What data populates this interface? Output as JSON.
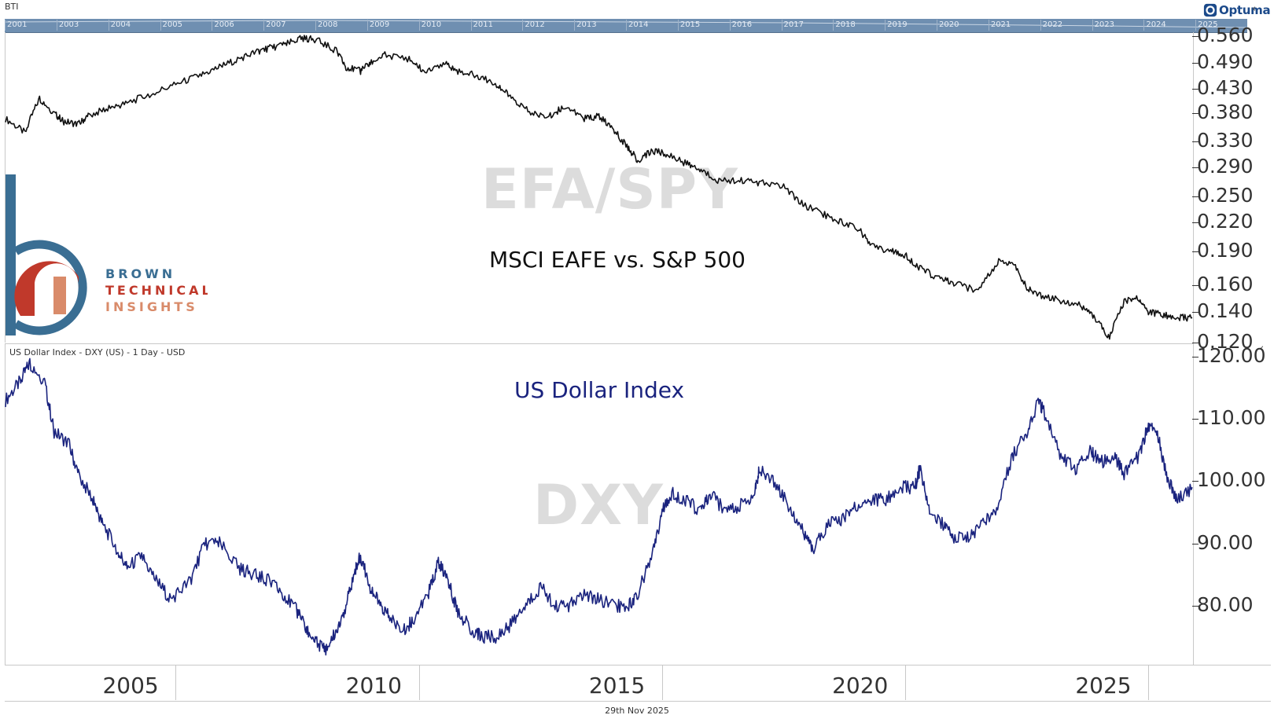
{
  "app": {
    "label": "BTI",
    "vendor": "Optuma",
    "date_stamp": "29th Nov 2025"
  },
  "navigator": {
    "years": [
      "2001",
      "2003",
      "2004",
      "2005",
      "2006",
      "2007",
      "2008",
      "2009",
      "2010",
      "2011",
      "2012",
      "2013",
      "2014",
      "2015",
      "2016",
      "2017",
      "2018",
      "2019",
      "2020",
      "2021",
      "2022",
      "2023",
      "2024",
      "2025"
    ]
  },
  "logo": {
    "line1": "BROWN",
    "line2": "TECHNICAL",
    "line3": "INSIGHTS",
    "colors": {
      "blue": "#3a6e93",
      "red": "#c0392b",
      "orange": "#d98b6a"
    }
  },
  "colors": {
    "ratio_line": "#111111",
    "dxy_line": "#1a237e",
    "watermark": "#dcdcdc",
    "navigator": "#6f8fb1"
  },
  "chart_data": [
    {
      "type": "line",
      "panel": "top",
      "watermark": "EFA/SPY",
      "annotation": "MSCI EAFE vs. S&P 500",
      "title": "",
      "y_ticks": [
        "0.560",
        "0.490",
        "0.430",
        "0.380",
        "0.330",
        "0.290",
        "0.250",
        "0.220",
        "0.190",
        "0.160",
        "0.140",
        "0.120"
      ],
      "ylim": [
        0.12,
        0.565
      ],
      "scale": "log",
      "xlim": [
        2001.5,
        2025.9
      ],
      "series": [
        {
          "x": [
            2001.5,
            2001.9,
            2002.2,
            2002.5,
            2002.7,
            2003.0,
            2003.2,
            2003.6,
            2004.0,
            2004.5,
            2005.0,
            2005.5,
            2005.9,
            2006.3,
            2006.7,
            2007.0,
            2007.3,
            2007.6,
            2007.9,
            2008.3,
            2008.5,
            2008.8,
            2009.0,
            2009.3,
            2009.8,
            2010.1,
            2010.5,
            2010.8,
            2011.2,
            2011.6,
            2011.9,
            2012.3,
            2012.7,
            2013.0,
            2013.4,
            2013.7,
            2014.0,
            2014.3,
            2014.5,
            2014.8,
            2015.1,
            2015.5,
            2015.8,
            2016.2,
            2016.6,
            2017.0,
            2017.5,
            2017.9,
            2018.2,
            2018.6,
            2019.0,
            2019.3,
            2019.7,
            2020.0,
            2020.3,
            2020.7,
            2021.0,
            2021.5,
            2021.9,
            2022.2,
            2022.5,
            2022.8,
            2023.2,
            2023.6,
            2023.9,
            2024.2,
            2024.5,
            2024.8,
            2025.0,
            2025.3,
            2025.6,
            2025.9
          ],
          "y": [
            0.37,
            0.345,
            0.41,
            0.38,
            0.365,
            0.36,
            0.375,
            0.39,
            0.4,
            0.42,
            0.44,
            0.46,
            0.48,
            0.5,
            0.52,
            0.53,
            0.54,
            0.555,
            0.55,
            0.52,
            0.48,
            0.47,
            0.49,
            0.51,
            0.5,
            0.47,
            0.49,
            0.47,
            0.46,
            0.44,
            0.41,
            0.38,
            0.375,
            0.395,
            0.37,
            0.375,
            0.35,
            0.32,
            0.3,
            0.315,
            0.31,
            0.295,
            0.285,
            0.27,
            0.272,
            0.268,
            0.264,
            0.24,
            0.232,
            0.222,
            0.215,
            0.195,
            0.19,
            0.186,
            0.175,
            0.165,
            0.162,
            0.155,
            0.18,
            0.18,
            0.158,
            0.152,
            0.148,
            0.145,
            0.136,
            0.123,
            0.148,
            0.15,
            0.14,
            0.138,
            0.136,
            0.136
          ]
        }
      ]
    },
    {
      "type": "line",
      "panel": "bottom",
      "title": "US Dollar Index - DXY (US) - 1 Day - USD",
      "watermark": "DXY",
      "annotation": "US Dollar Index",
      "y_ticks": [
        "120.00",
        "110.00",
        "100.00",
        "90.00",
        "80.00"
      ],
      "ylim": [
        71,
        121
      ],
      "xlim": [
        2001.5,
        2025.9
      ],
      "series": [
        {
          "x": [
            2001.5,
            2001.8,
            2002.0,
            2002.3,
            2002.5,
            2002.8,
            2003.0,
            2003.3,
            2003.5,
            2003.8,
            2004.0,
            2004.3,
            2004.6,
            2004.9,
            2005.3,
            2005.6,
            2005.9,
            2006.3,
            2006.6,
            2006.9,
            2007.2,
            2007.5,
            2007.7,
            2007.9,
            2008.1,
            2008.3,
            2008.5,
            2008.7,
            2008.8,
            2009.0,
            2009.2,
            2009.4,
            2009.7,
            2009.9,
            2010.2,
            2010.4,
            2010.6,
            2010.8,
            2011.1,
            2011.3,
            2011.6,
            2011.9,
            2012.2,
            2012.5,
            2012.8,
            2013.1,
            2013.4,
            2013.7,
            2014.0,
            2014.3,
            2014.5,
            2014.8,
            2015.0,
            2015.2,
            2015.5,
            2015.8,
            2016.0,
            2016.3,
            2016.6,
            2016.9,
            2017.0,
            2017.3,
            2017.6,
            2017.9,
            2018.1,
            2018.4,
            2018.7,
            2019.0,
            2019.3,
            2019.6,
            2019.9,
            2020.2,
            2020.3,
            2020.5,
            2020.8,
            2021.0,
            2021.3,
            2021.6,
            2021.9,
            2022.2,
            2022.5,
            2022.75,
            2022.9,
            2023.2,
            2023.5,
            2023.8,
            2024.0,
            2024.3,
            2024.5,
            2024.8,
            2025.0,
            2025.2,
            2025.4,
            2025.6,
            2025.9
          ],
          "y": [
            113,
            116,
            119,
            116,
            108,
            106,
            101,
            97,
            93,
            89,
            86,
            88,
            84,
            81,
            84,
            90,
            90,
            86,
            85,
            84,
            82,
            79,
            76,
            74,
            73,
            76,
            80,
            86,
            88,
            83,
            80,
            78,
            76,
            78,
            82,
            87,
            84,
            79,
            76,
            75,
            75,
            77,
            80,
            83,
            80,
            80,
            82,
            81,
            80,
            80,
            82,
            88,
            95,
            98,
            97,
            95,
            98,
            95,
            96,
            98,
            102,
            100,
            96,
            92,
            89,
            93,
            94,
            96,
            97,
            97,
            99,
            99,
            102,
            95,
            93,
            91,
            91,
            93,
            96,
            104,
            108,
            113,
            110,
            104,
            102,
            105,
            103,
            104,
            101,
            104,
            109,
            107,
            100,
            97,
            99
          ]
        }
      ]
    }
  ],
  "x_axis": {
    "ticks": [
      "2005",
      "2010",
      "2015",
      "2020",
      "2025"
    ],
    "tick_values": [
      2005,
      2010,
      2015,
      2020,
      2025
    ]
  }
}
